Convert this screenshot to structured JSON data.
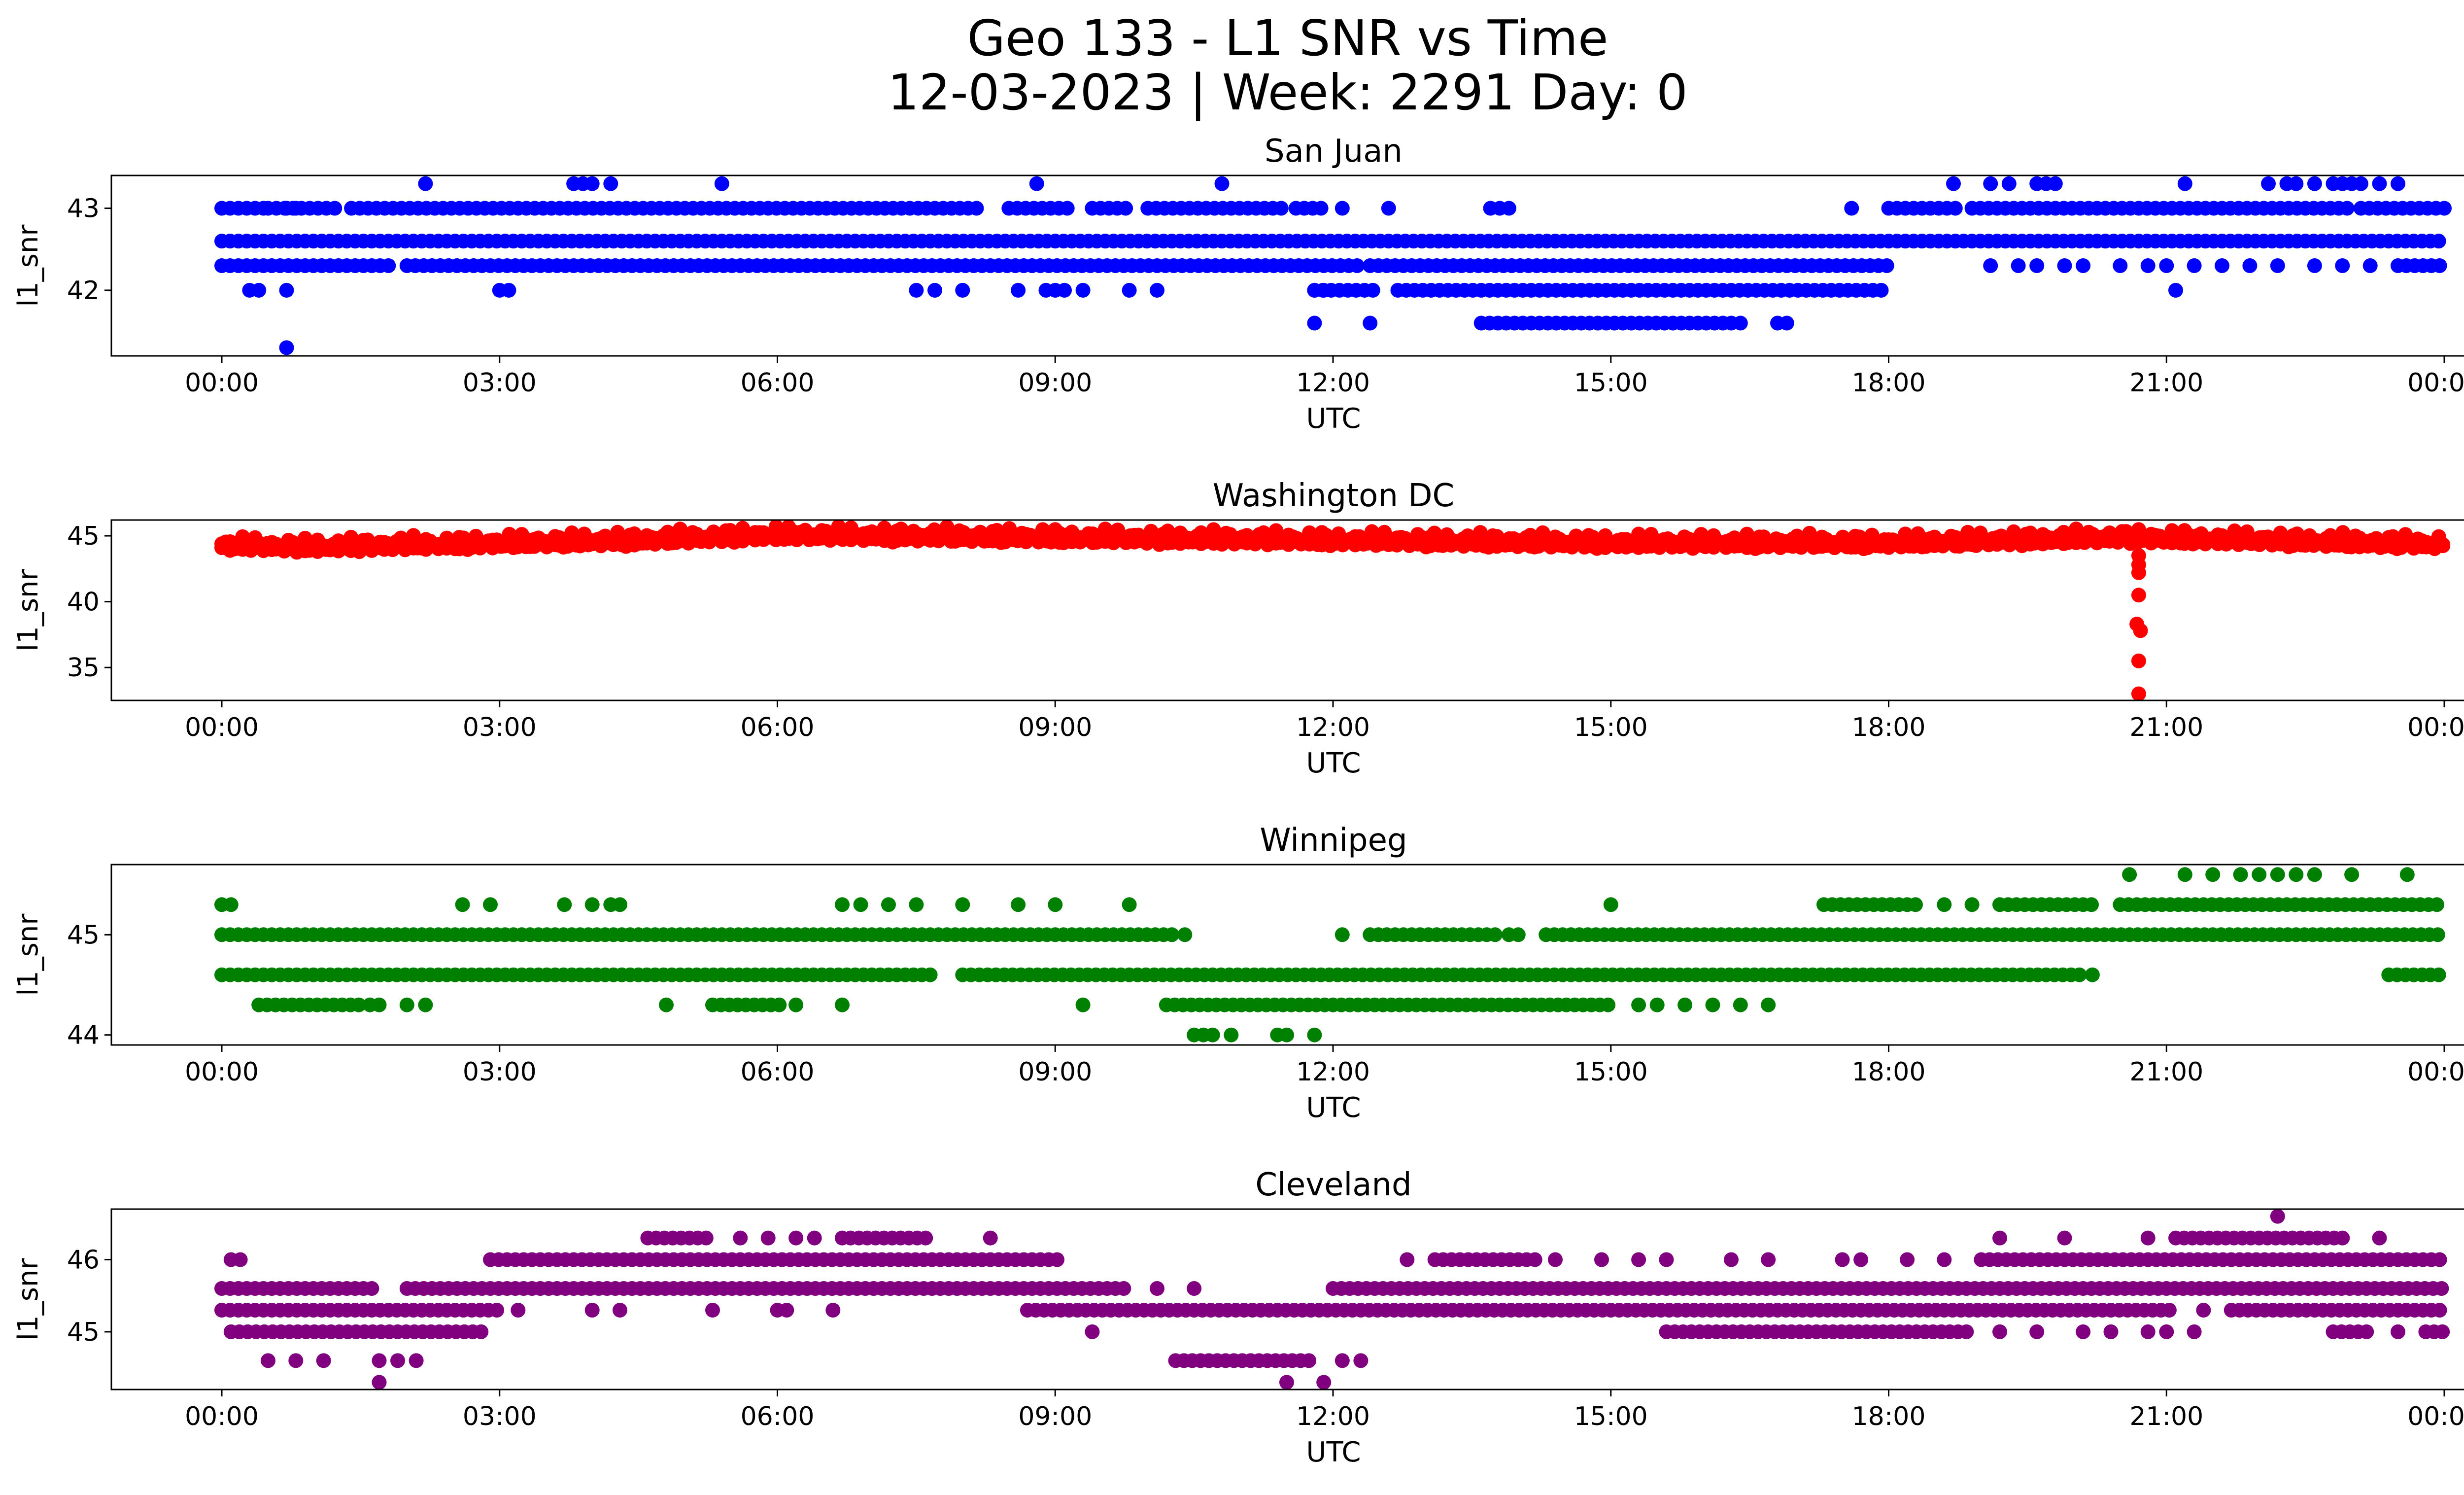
{
  "figure": {
    "title_line1": "Geo 133 - L1 SNR vs Time",
    "title_line2": "12-03-2023 | Week: 2291 Day: 0"
  },
  "chart_data": [
    {
      "type": "scatter",
      "title": "San Juan",
      "xlabel": "UTC",
      "ylabel": "l1_snr",
      "color": "#0000ff",
      "xlim": [
        "23:00",
        "01:30"
      ],
      "ylim": [
        41.2,
        43.4
      ],
      "xticks": [
        "00:00",
        "03:00",
        "06:00",
        "09:00",
        "12:00",
        "15:00",
        "18:00",
        "21:00",
        "00:00"
      ],
      "yticks": [
        42,
        43
      ],
      "bands": [
        {
          "y": 42.6,
          "segments": [
            [
              0.0,
              24.0
            ]
          ]
        },
        {
          "y": 42.3,
          "segments": [
            [
              0.0,
              1.8
            ],
            [
              2.0,
              12.3
            ],
            [
              12.4,
              18.0
            ]
          ],
          "extra_x": [
            19.1,
            19.4,
            19.6,
            19.9,
            20.1,
            20.5,
            20.8,
            21.0,
            21.3,
            21.6,
            21.9,
            22.2,
            22.6,
            22.9,
            23.2
          ],
          "dense_from": 23.5
        },
        {
          "y": 43.0,
          "segments": [
            [
              0.0,
              0.5
            ],
            [
              0.5,
              1.3
            ],
            [
              1.4,
              8.2
            ],
            [
              8.5,
              9.2
            ],
            [
              9.4,
              9.8
            ],
            [
              10.0,
              11.5
            ],
            [
              11.6,
              11.9
            ]
          ],
          "extra_x": [
            0.7,
            0.8,
            12.1,
            12.6,
            13.7,
            13.8,
            13.9,
            17.6
          ],
          "segments2": [
            [
              18.0,
              18.8
            ],
            [
              18.9,
              23.0
            ],
            [
              23.1,
              24.0
            ]
          ]
        },
        {
          "y": 42.0,
          "segments": [
            [
              11.8,
              12.5
            ],
            [
              12.7,
              18.0
            ]
          ],
          "extra_x": [
            0.3,
            0.4,
            0.7,
            3.0,
            3.1,
            7.5,
            7.7,
            8.0,
            8.6,
            8.9,
            9.0,
            9.1,
            9.3,
            9.8,
            10.1,
            11.8,
            11.9,
            21.1
          ]
        },
        {
          "y": 41.6,
          "segments": [
            [
              13.6,
              16.3
            ]
          ],
          "extra_x": [
            11.8,
            12.4,
            16.4,
            16.8,
            16.9
          ]
        },
        {
          "y": 43.3,
          "extra_x": [
            2.2,
            3.8,
            3.9,
            4.0,
            4.2,
            5.4,
            8.8,
            10.8,
            18.7,
            19.1,
            19.3,
            19.6,
            19.7,
            19.8,
            21.2,
            22.1,
            22.3,
            22.4,
            22.6,
            22.8,
            22.9,
            23.0,
            23.1,
            23.3,
            23.5
          ]
        },
        {
          "y": 41.3,
          "extra_x": [
            0.7
          ]
        }
      ]
    },
    {
      "type": "scatter",
      "title": "Washington DC",
      "xlabel": "UTC",
      "ylabel": "l1_snr",
      "color": "#ff0000",
      "xlim": [
        "23:00",
        "01:30"
      ],
      "ylim": [
        32.5,
        46.2
      ],
      "xticks": [
        "00:00",
        "03:00",
        "06:00",
        "09:00",
        "12:00",
        "15:00",
        "18:00",
        "21:00",
        "00:00"
      ],
      "yticks": [
        35,
        40,
        45
      ],
      "trend": [
        [
          0.0,
          44.4
        ],
        [
          1.0,
          44.3
        ],
        [
          2.5,
          44.5
        ],
        [
          4.5,
          44.8
        ],
        [
          6.0,
          45.2
        ],
        [
          9.0,
          45.0
        ],
        [
          12.0,
          44.8
        ],
        [
          15.0,
          44.6
        ],
        [
          18.0,
          44.6
        ],
        [
          20.5,
          45.0
        ],
        [
          22.0,
          44.8
        ],
        [
          24.0,
          44.5
        ]
      ],
      "outliers": [
        [
          20.7,
          43.5
        ],
        [
          20.7,
          42.8
        ],
        [
          20.7,
          42.2
        ],
        [
          20.7,
          40.5
        ],
        [
          20.68,
          38.3
        ],
        [
          20.72,
          37.8
        ],
        [
          20.7,
          35.5
        ],
        [
          20.7,
          33.0
        ]
      ]
    },
    {
      "type": "scatter",
      "title": "Winnipeg",
      "xlabel": "UTC",
      "ylabel": "l1_snr",
      "color": "#008000",
      "xlim": [
        "23:00",
        "01:30"
      ],
      "ylim": [
        43.9,
        45.7
      ],
      "xticks": [
        "00:00",
        "03:00",
        "06:00",
        "09:00",
        "12:00",
        "15:00",
        "18:00",
        "21:00",
        "00:00"
      ],
      "yticks": [
        44,
        45
      ],
      "bands": [
        {
          "y": 45.0,
          "segments": [
            [
              0.0,
              10.3
            ],
            [
              12.4,
              13.8
            ],
            [
              14.3,
              24.0
            ]
          ],
          "extra_x": [
            10.4,
            12.1,
            13.9,
            14.0
          ]
        },
        {
          "y": 44.6,
          "segments": [
            [
              0.0,
              7.7
            ],
            [
              8.0,
              20.1
            ],
            [
              23.4,
              24.0
            ]
          ],
          "extra_x": [
            20.2
          ]
        },
        {
          "y": 44.3,
          "segments": [
            [
              0.4,
              1.5
            ],
            [
              5.3,
              6.1
            ],
            [
              10.2,
              15.0
            ]
          ],
          "extra_x": [
            1.6,
            1.7,
            2.0,
            2.2,
            4.8,
            6.2,
            6.7,
            9.3,
            15.3,
            15.5,
            15.8,
            16.1,
            16.4,
            16.7
          ]
        },
        {
          "y": 45.3,
          "segments": [
            [
              17.3,
              18.3
            ],
            [
              19.2,
              20.2
            ],
            [
              20.5,
              24.0
            ]
          ],
          "extra_x": [
            0.0,
            0.1,
            2.6,
            2.9,
            3.7,
            4.0,
            4.2,
            4.3,
            6.7,
            6.9,
            7.2,
            7.5,
            8.0,
            8.6,
            9.0,
            9.8,
            15.0,
            18.6,
            18.9
          ]
        },
        {
          "y": 44.0,
          "extra_x": [
            10.5,
            10.6,
            10.7,
            10.9,
            11.4,
            11.5,
            11.8
          ]
        },
        {
          "y": 45.6,
          "extra_x": [
            20.6,
            21.2,
            21.5,
            21.8,
            22.0,
            22.2,
            22.4,
            22.6,
            23.0,
            23.6
          ]
        }
      ]
    },
    {
      "type": "scatter",
      "title": "Cleveland",
      "xlabel": "UTC",
      "ylabel": "l1_snr",
      "color": "#800080",
      "xlim": [
        "23:00",
        "01:30"
      ],
      "ylim": [
        44.2,
        46.7
      ],
      "xticks": [
        "00:00",
        "03:00",
        "06:00",
        "09:00",
        "12:00",
        "15:00",
        "18:00",
        "21:00",
        "00:00"
      ],
      "yticks": [
        45,
        46
      ],
      "bands": [
        {
          "y": 45.6,
          "segments": [
            [
              0.0,
              1.7
            ],
            [
              2.0,
              9.8
            ],
            [
              12.0,
              24.0
            ]
          ],
          "extra_x": [
            10.1,
            10.5
          ]
        },
        {
          "y": 45.3,
          "segments": [
            [
              0.0,
              3.0
            ],
            [
              8.7,
              21.1
            ],
            [
              21.7,
              24.0
            ]
          ],
          "extra_x": [
            3.2,
            4.0,
            4.3,
            5.3,
            6.0,
            6.1,
            6.6,
            21.4
          ]
        },
        {
          "y": 45.0,
          "segments": [
            [
              0.1,
              2.8
            ],
            [
              15.6,
              18.9
            ],
            [
              22.8,
              23.2
            ],
            [
              23.8,
              24.0
            ]
          ],
          "extra_x": [
            9.4,
            19.2,
            19.6,
            20.1,
            20.4,
            20.8,
            21.0,
            21.3,
            23.5
          ]
        },
        {
          "y": 46.0,
          "segments": [
            [
              2.9,
              9.1
            ],
            [
              13.1,
              14.2
            ],
            [
              19.0,
              24.0
            ]
          ],
          "extra_x": [
            0.1,
            0.2,
            12.8,
            14.4,
            14.9,
            15.3,
            15.6,
            16.3,
            16.7,
            17.5,
            17.7,
            18.2,
            18.6
          ]
        },
        {
          "y": 44.6,
          "segments": [
            [
              10.3,
              11.8
            ]
          ],
          "extra_x": [
            0.5,
            0.8,
            1.1,
            1.7,
            1.9,
            2.1,
            12.1,
            12.3
          ]
        },
        {
          "y": 46.3,
          "segments": [
            [
              4.6,
              5.3
            ],
            [
              6.7,
              7.6
            ],
            [
              21.1,
              22.9
            ]
          ],
          "extra_x": [
            5.6,
            5.9,
            6.2,
            6.4,
            8.3,
            19.2,
            19.9,
            20.8,
            23.3
          ]
        },
        {
          "y": 44.3,
          "extra_x": [
            1.7,
            11.5,
            11.9
          ]
        },
        {
          "y": 46.6,
          "extra_x": [
            22.2
          ]
        }
      ]
    }
  ]
}
